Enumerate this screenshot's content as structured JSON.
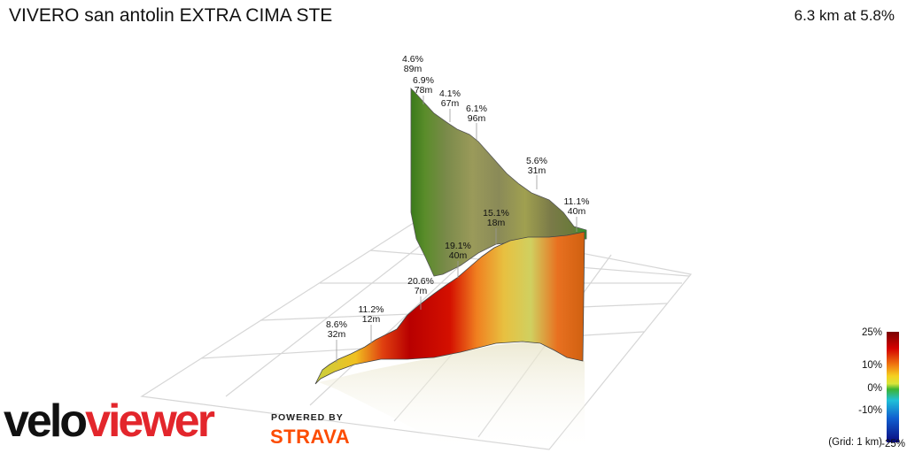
{
  "header": {
    "title": "VIVERO san antolin EXTRA CIMA STE",
    "summary": "6.3 km at 5.8%"
  },
  "chart_data": {
    "type": "area",
    "segments": [
      {
        "grade": "8.6%",
        "length": "32m"
      },
      {
        "grade": "11.2%",
        "length": "12m"
      },
      {
        "grade": "20.6%",
        "length": "7m"
      },
      {
        "grade": "19.1%",
        "length": "40m"
      },
      {
        "grade": "15.1%",
        "length": "18m"
      },
      {
        "grade": "11.1%",
        "length": "40m"
      },
      {
        "grade": "5.6%",
        "length": "31m"
      },
      {
        "grade": "6.1%",
        "length": "96m"
      },
      {
        "grade": "4.1%",
        "length": "67m"
      },
      {
        "grade": "6.9%",
        "length": "78m"
      },
      {
        "grade": "4.6%",
        "length": "89m"
      }
    ],
    "color_scale": {
      "ticks": [
        "25%",
        "10%",
        "0%",
        "-10%",
        "-25%"
      ],
      "colors": [
        "#7a0000",
        "#d40000",
        "#f07a10",
        "#f5d020",
        "#d8e63a",
        "#3cb432",
        "#20c0d8",
        "#1060d0",
        "#0a0a80"
      ]
    },
    "grid_note": "(Grid: 1 km)"
  },
  "branding": {
    "logo_left": "velo",
    "logo_right": "viewer",
    "powered_by": "POWERED BY",
    "strava": "STRAVA"
  }
}
